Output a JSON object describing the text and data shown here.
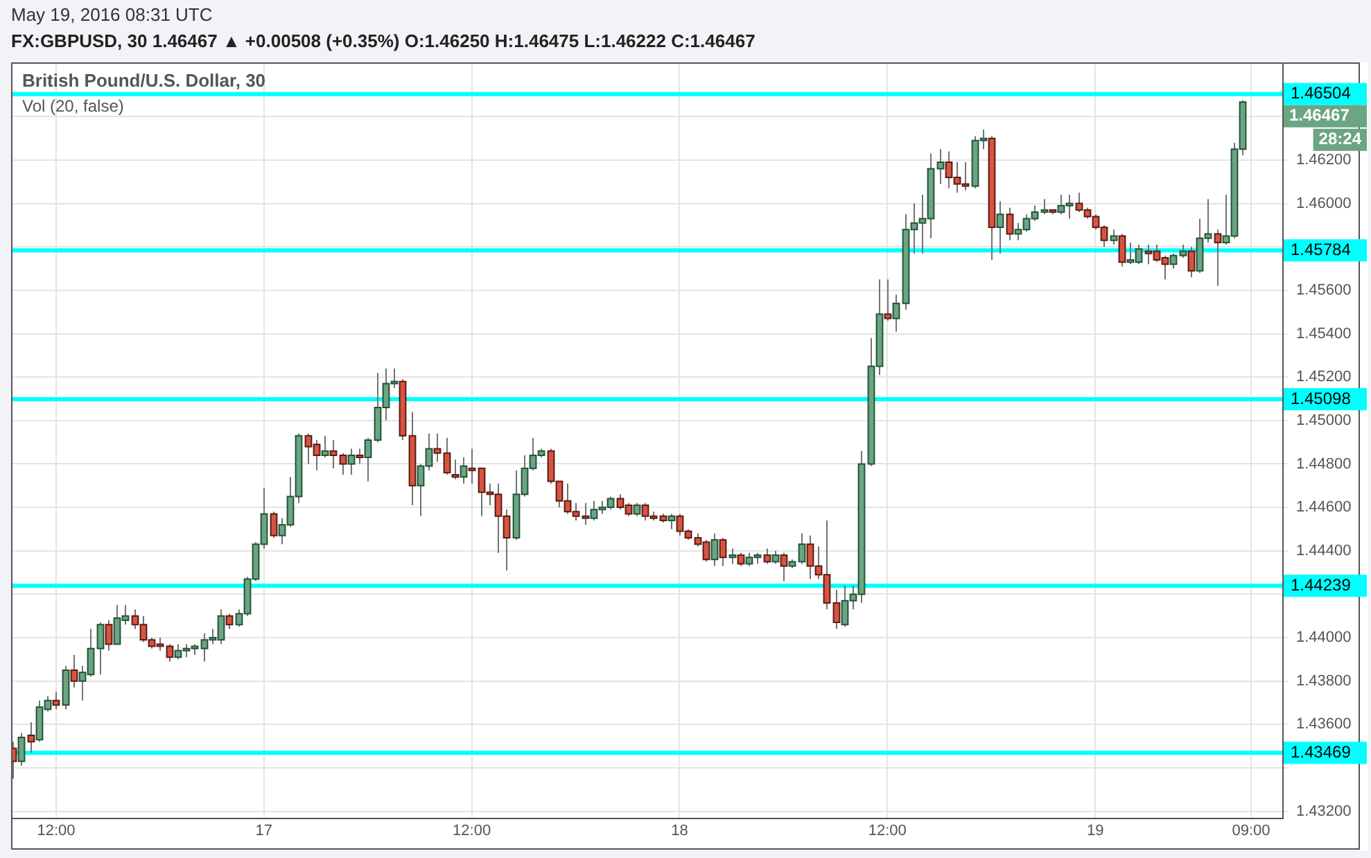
{
  "chart_data": {
    "type": "candlestick",
    "title": "FX:GBPUSD, 30 1.46467 ▲ +0.00508 (+0.35%) O:1.46250 H:1.46475 L:1.46222 C:1.46467",
    "subtitle": "May 19, 2016 08:31 UTC",
    "annotations": [
      "British Pound/U.S. Dollar, 30",
      "Vol (20, false)",
      "1.46467",
      "28:24"
    ],
    "x": [
      "2016-05-16T09:30",
      "2016-05-16T10:00",
      "2016-05-16T10:30",
      "2016-05-16T11:00",
      "2016-05-16T11:30",
      "2016-05-16T12:00",
      "2016-05-16T12:30",
      "2016-05-16T13:00",
      "2016-05-16T13:30",
      "2016-05-16T14:00",
      "2016-05-16T14:30",
      "2016-05-16T15:00",
      "2016-05-16T15:30",
      "2016-05-16T16:00",
      "2016-05-16T16:30",
      "2016-05-16T17:00",
      "2016-05-16T17:30",
      "2016-05-16T18:00",
      "2016-05-16T18:30",
      "2016-05-16T19:00",
      "2016-05-16T19:30",
      "2016-05-16T20:00",
      "2016-05-16T20:30",
      "2016-05-16T21:00",
      "2016-05-16T21:30",
      "2016-05-16T22:00",
      "2016-05-16T22:30",
      "2016-05-16T23:00",
      "2016-05-16T23:30",
      "2016-05-17T00:00",
      "2016-05-17T00:30",
      "2016-05-17T01:00",
      "2016-05-17T01:30",
      "2016-05-17T02:00",
      "2016-05-17T02:30",
      "2016-05-17T03:00",
      "2016-05-17T03:30",
      "2016-05-17T04:00",
      "2016-05-17T04:30",
      "2016-05-17T05:00",
      "2016-05-17T05:30",
      "2016-05-17T06:00",
      "2016-05-17T06:30",
      "2016-05-17T07:00",
      "2016-05-17T07:30",
      "2016-05-17T08:00",
      "2016-05-17T08:30",
      "2016-05-17T09:00",
      "2016-05-17T09:30",
      "2016-05-17T10:00",
      "2016-05-17T10:30",
      "2016-05-17T11:00",
      "2016-05-17T11:30",
      "2016-05-17T12:00",
      "2016-05-17T12:30",
      "2016-05-17T13:00",
      "2016-05-17T13:30",
      "2016-05-17T14:00",
      "2016-05-17T14:30",
      "2016-05-17T15:00",
      "2016-05-17T15:30",
      "2016-05-17T16:00",
      "2016-05-17T16:30",
      "2016-05-17T17:00",
      "2016-05-17T17:30",
      "2016-05-17T18:00",
      "2016-05-17T18:30",
      "2016-05-17T19:00",
      "2016-05-17T19:30",
      "2016-05-17T20:00",
      "2016-05-17T20:30",
      "2016-05-17T21:00",
      "2016-05-17T21:30",
      "2016-05-17T22:00",
      "2016-05-17T22:30",
      "2016-05-17T23:00",
      "2016-05-17T23:30",
      "2016-05-18T00:00",
      "2016-05-18T00:30",
      "2016-05-18T01:00",
      "2016-05-18T01:30",
      "2016-05-18T02:00",
      "2016-05-18T02:30",
      "2016-05-18T03:00",
      "2016-05-18T03:30",
      "2016-05-18T04:00",
      "2016-05-18T04:30",
      "2016-05-18T05:00",
      "2016-05-18T05:30",
      "2016-05-18T06:00",
      "2016-05-18T06:30",
      "2016-05-18T07:00",
      "2016-05-18T07:30",
      "2016-05-18T08:00",
      "2016-05-18T08:30",
      "2016-05-18T09:00",
      "2016-05-18T09:30",
      "2016-05-18T10:00",
      "2016-05-18T10:30",
      "2016-05-18T11:00",
      "2016-05-18T11:30",
      "2016-05-18T12:00",
      "2016-05-18T12:30",
      "2016-05-18T13:00",
      "2016-05-18T13:30",
      "2016-05-18T14:00",
      "2016-05-18T14:30",
      "2016-05-18T15:00",
      "2016-05-18T15:30",
      "2016-05-18T16:00",
      "2016-05-18T16:30",
      "2016-05-18T17:00",
      "2016-05-18T17:30",
      "2016-05-18T18:00",
      "2016-05-18T18:30",
      "2016-05-18T19:00",
      "2016-05-18T19:30",
      "2016-05-18T20:00",
      "2016-05-18T20:30",
      "2016-05-18T21:00",
      "2016-05-18T21:30",
      "2016-05-18T22:00",
      "2016-05-18T22:30",
      "2016-05-18T23:00",
      "2016-05-18T23:30",
      "2016-05-19T00:00",
      "2016-05-19T00:30",
      "2016-05-19T01:00",
      "2016-05-19T01:30",
      "2016-05-19T02:00",
      "2016-05-19T02:30",
      "2016-05-19T03:00",
      "2016-05-19T03:30",
      "2016-05-19T04:00",
      "2016-05-19T04:30",
      "2016-05-19T05:00",
      "2016-05-19T05:30",
      "2016-05-19T06:00",
      "2016-05-19T06:30",
      "2016-05-19T07:00",
      "2016-05-19T07:30",
      "2016-05-19T08:00",
      "2016-05-19T08:30"
    ],
    "ohlc": [
      [
        1.4349,
        1.4352,
        1.4335,
        1.4343
      ],
      [
        1.4343,
        1.4356,
        1.4341,
        1.4354
      ],
      [
        1.4355,
        1.4361,
        1.4347,
        1.4352
      ],
      [
        1.4353,
        1.4371,
        1.4352,
        1.4368
      ],
      [
        1.4367,
        1.4373,
        1.4366,
        1.4371
      ],
      [
        1.4371,
        1.4375,
        1.4367,
        1.4369
      ],
      [
        1.4369,
        1.4387,
        1.4367,
        1.4385
      ],
      [
        1.4385,
        1.4392,
        1.4377,
        1.438
      ],
      [
        1.438,
        1.4387,
        1.4371,
        1.4384
      ],
      [
        1.4383,
        1.4404,
        1.4382,
        1.4395
      ],
      [
        1.4395,
        1.4407,
        1.4383,
        1.4406
      ],
      [
        1.4406,
        1.4408,
        1.4394,
        1.4397
      ],
      [
        1.4397,
        1.4415,
        1.4397,
        1.4409
      ],
      [
        1.4408,
        1.4415,
        1.4406,
        1.441
      ],
      [
        1.441,
        1.4413,
        1.4404,
        1.4406
      ],
      [
        1.4406,
        1.441,
        1.4398,
        1.4399
      ],
      [
        1.4399,
        1.44,
        1.4395,
        1.4396
      ],
      [
        1.4397,
        1.44,
        1.4394,
        1.4396
      ],
      [
        1.4396,
        1.4397,
        1.4389,
        1.4391
      ],
      [
        1.4391,
        1.4397,
        1.439,
        1.4394
      ],
      [
        1.4394,
        1.4397,
        1.4391,
        1.4395
      ],
      [
        1.4395,
        1.4397,
        1.4392,
        1.4396
      ],
      [
        1.4395,
        1.4402,
        1.4389,
        1.4399
      ],
      [
        1.4399,
        1.4404,
        1.4397,
        1.44
      ],
      [
        1.4399,
        1.4413,
        1.4397,
        1.441
      ],
      [
        1.441,
        1.4411,
        1.4404,
        1.4406
      ],
      [
        1.4406,
        1.4413,
        1.4405,
        1.4411
      ],
      [
        1.4411,
        1.4428,
        1.441,
        1.4427
      ],
      [
        1.4427,
        1.4444,
        1.4426,
        1.4443
      ],
      [
        1.4443,
        1.4469,
        1.4441,
        1.4457
      ],
      [
        1.4457,
        1.4458,
        1.4446,
        1.4447
      ],
      [
        1.4447,
        1.4455,
        1.4443,
        1.4452
      ],
      [
        1.4452,
        1.4474,
        1.4451,
        1.4465
      ],
      [
        1.4465,
        1.4494,
        1.4462,
        1.4493
      ],
      [
        1.4493,
        1.4494,
        1.448,
        1.4488
      ],
      [
        1.4489,
        1.4491,
        1.4477,
        1.4484
      ],
      [
        1.4484,
        1.4493,
        1.4483,
        1.4486
      ],
      [
        1.4486,
        1.4491,
        1.4478,
        1.4484
      ],
      [
        1.4484,
        1.4485,
        1.4475,
        1.448
      ],
      [
        1.448,
        1.4487,
        1.4475,
        1.4484
      ],
      [
        1.4484,
        1.4487,
        1.448,
        1.4483
      ],
      [
        1.4483,
        1.4492,
        1.4472,
        1.4491
      ],
      [
        1.4491,
        1.4522,
        1.449,
        1.4506
      ],
      [
        1.4506,
        1.4524,
        1.45,
        1.4517
      ],
      [
        1.4517,
        1.4524,
        1.4515,
        1.4518
      ],
      [
        1.4518,
        1.4519,
        1.4491,
        1.4493
      ],
      [
        1.4493,
        1.4504,
        1.4461,
        1.447
      ],
      [
        1.447,
        1.448,
        1.4456,
        1.4479
      ],
      [
        1.4479,
        1.4494,
        1.4477,
        1.4487
      ],
      [
        1.4487,
        1.4494,
        1.4481,
        1.4485
      ],
      [
        1.4485,
        1.4492,
        1.4475,
        1.4476
      ],
      [
        1.4475,
        1.4482,
        1.4473,
        1.4474
      ],
      [
        1.4474,
        1.4483,
        1.4471,
        1.4479
      ],
      [
        1.4478,
        1.4487,
        1.4471,
        1.4477
      ],
      [
        1.4478,
        1.4478,
        1.4456,
        1.4467
      ],
      [
        1.4467,
        1.4471,
        1.4461,
        1.4466
      ],
      [
        1.4466,
        1.4471,
        1.4439,
        1.4456
      ],
      [
        1.4456,
        1.4459,
        1.4431,
        1.4446
      ],
      [
        1.4446,
        1.4477,
        1.4445,
        1.4466
      ],
      [
        1.4466,
        1.4484,
        1.4465,
        1.4478
      ],
      [
        1.4478,
        1.4492,
        1.4477,
        1.4484
      ],
      [
        1.4484,
        1.4487,
        1.4483,
        1.4486
      ],
      [
        1.4486,
        1.4487,
        1.4471,
        1.4472
      ],
      [
        1.4472,
        1.4472,
        1.446,
        1.4463
      ],
      [
        1.4463,
        1.4471,
        1.4457,
        1.4458
      ],
      [
        1.4458,
        1.4462,
        1.4454,
        1.4456
      ],
      [
        1.4456,
        1.4462,
        1.4452,
        1.4455
      ],
      [
        1.4455,
        1.4463,
        1.4454,
        1.4459
      ],
      [
        1.4459,
        1.4463,
        1.4457,
        1.446
      ],
      [
        1.446,
        1.4465,
        1.4459,
        1.4464
      ],
      [
        1.4464,
        1.4466,
        1.4459,
        1.446
      ],
      [
        1.4461,
        1.4462,
        1.4456,
        1.4457
      ],
      [
        1.4457,
        1.4462,
        1.4456,
        1.4461
      ],
      [
        1.4461,
        1.4462,
        1.4454,
        1.4456
      ],
      [
        1.4456,
        1.4458,
        1.4454,
        1.4455
      ],
      [
        1.4456,
        1.4457,
        1.4453,
        1.4454
      ],
      [
        1.4454,
        1.4457,
        1.445,
        1.4456
      ],
      [
        1.4456,
        1.4457,
        1.4447,
        1.4449
      ],
      [
        1.4449,
        1.445,
        1.4445,
        1.4446
      ],
      [
        1.4446,
        1.4448,
        1.4442,
        1.4443
      ],
      [
        1.4444,
        1.4445,
        1.4435,
        1.4436
      ],
      [
        1.4436,
        1.4448,
        1.4433,
        1.4445
      ],
      [
        1.4445,
        1.4446,
        1.4433,
        1.4437
      ],
      [
        1.4437,
        1.4441,
        1.4434,
        1.4438
      ],
      [
        1.4438,
        1.4439,
        1.4433,
        1.4434
      ],
      [
        1.4434,
        1.4439,
        1.4433,
        1.4437
      ],
      [
        1.4437,
        1.4439,
        1.4434,
        1.4438
      ],
      [
        1.4438,
        1.4441,
        1.4434,
        1.4435
      ],
      [
        1.4435,
        1.444,
        1.4434,
        1.4438
      ],
      [
        1.4438,
        1.4439,
        1.4426,
        1.4433
      ],
      [
        1.4433,
        1.4436,
        1.4432,
        1.4435
      ],
      [
        1.4435,
        1.4448,
        1.4434,
        1.4443
      ],
      [
        1.4443,
        1.4447,
        1.4427,
        1.4433
      ],
      [
        1.4433,
        1.4442,
        1.4427,
        1.4429
      ],
      [
        1.4429,
        1.4454,
        1.4413,
        1.4416
      ],
      [
        1.4416,
        1.4422,
        1.4404,
        1.4407
      ],
      [
        1.4406,
        1.4424,
        1.4405,
        1.4417
      ],
      [
        1.4417,
        1.4424,
        1.4413,
        1.442
      ],
      [
        1.442,
        1.4486,
        1.4416,
        1.448
      ],
      [
        1.448,
        1.4538,
        1.4479,
        1.4525
      ],
      [
        1.4525,
        1.4565,
        1.4521,
        1.4549
      ],
      [
        1.4549,
        1.4565,
        1.4546,
        1.4547
      ],
      [
        1.4547,
        1.4558,
        1.4541,
        1.4554
      ],
      [
        1.4554,
        1.4595,
        1.4551,
        1.4588
      ],
      [
        1.4588,
        1.46,
        1.4577,
        1.4591
      ],
      [
        1.4591,
        1.4604,
        1.4577,
        1.4593
      ],
      [
        1.4593,
        1.4623,
        1.4584,
        1.4616
      ],
      [
        1.4616,
        1.4625,
        1.4609,
        1.4619
      ],
      [
        1.4619,
        1.4624,
        1.4607,
        1.4612
      ],
      [
        1.4612,
        1.4619,
        1.4605,
        1.4609
      ],
      [
        1.4609,
        1.4619,
        1.4606,
        1.4608
      ],
      [
        1.4608,
        1.4631,
        1.4607,
        1.4629
      ],
      [
        1.4629,
        1.4634,
        1.4625,
        1.463
      ],
      [
        1.463,
        1.4631,
        1.4574,
        1.4589
      ],
      [
        1.4589,
        1.4601,
        1.4577,
        1.4595
      ],
      [
        1.4595,
        1.4598,
        1.4583,
        1.4586
      ],
      [
        1.4586,
        1.4591,
        1.4583,
        1.4588
      ],
      [
        1.4588,
        1.4595,
        1.4587,
        1.4593
      ],
      [
        1.4593,
        1.4599,
        1.4592,
        1.4596
      ],
      [
        1.4596,
        1.4602,
        1.4595,
        1.4597
      ],
      [
        1.4597,
        1.4597,
        1.4595,
        1.4596
      ],
      [
        1.4596,
        1.4604,
        1.4595,
        1.4599
      ],
      [
        1.4599,
        1.4604,
        1.4593,
        1.46
      ],
      [
        1.46,
        1.4605,
        1.4596,
        1.4597
      ],
      [
        1.4597,
        1.4598,
        1.4593,
        1.4594
      ],
      [
        1.4594,
        1.4595,
        1.4588,
        1.4589
      ],
      [
        1.4589,
        1.459,
        1.458,
        1.4583
      ],
      [
        1.4583,
        1.4588,
        1.4581,
        1.4585
      ],
      [
        1.4585,
        1.4586,
        1.4571,
        1.4573
      ],
      [
        1.4573,
        1.4582,
        1.4572,
        1.4574
      ],
      [
        1.4573,
        1.4581,
        1.4572,
        1.4579
      ],
      [
        1.4578,
        1.4581,
        1.4572,
        1.4577
      ],
      [
        1.4578,
        1.4581,
        1.4573,
        1.4574
      ],
      [
        1.4575,
        1.4576,
        1.4565,
        1.4572
      ],
      [
        1.4572,
        1.4577,
        1.457,
        1.4576
      ],
      [
        1.4576,
        1.4581,
        1.4575,
        1.4578
      ],
      [
        1.4578,
        1.458,
        1.4566,
        1.4569
      ],
      [
        1.4569,
        1.4593,
        1.4568,
        1.4584
      ],
      [
        1.4584,
        1.4602,
        1.4582,
        1.4586
      ],
      [
        1.4586,
        1.4588,
        1.4562,
        1.4582
      ],
      [
        1.4582,
        1.4604,
        1.4581,
        1.4585
      ],
      [
        1.4585,
        1.4628,
        1.4584,
        1.4625
      ],
      [
        1.4625,
        1.46475,
        1.46222,
        1.46467
      ]
    ],
    "xlim": [
      "2016-05-16T09:24",
      "2016-05-19T10:48"
    ],
    "xticks": [
      {
        "value": "2016-05-16T12:00",
        "label": "12:00"
      },
      {
        "value": "2016-05-17",
        "label": "17"
      },
      {
        "value": "2016-05-17T12:00",
        "label": "12:00"
      },
      {
        "value": "2016-05-18",
        "label": "18"
      },
      {
        "value": "2016-05-18T12:00",
        "label": "12:00"
      },
      {
        "value": "2016-05-19",
        "label": "19"
      },
      {
        "value": "2016-05-19T09:00",
        "label": "09:00"
      }
    ],
    "ylim": [
      1.4317,
      1.4665
    ],
    "yticks": [
      {
        "value": 1.432,
        "label": "1.43200"
      },
      {
        "value": 1.434,
        "label": null
      },
      {
        "value": 1.436,
        "label": "1.43600"
      },
      {
        "value": 1.438,
        "label": "1.43800"
      },
      {
        "value": 1.44,
        "label": "1.44000"
      },
      {
        "value": 1.442,
        "label": null
      },
      {
        "value": 1.444,
        "label": "1.44400"
      },
      {
        "value": 1.446,
        "label": "1.44600"
      },
      {
        "value": 1.448,
        "label": "1.44800"
      },
      {
        "value": 1.45,
        "label": "1.45000"
      },
      {
        "value": 1.452,
        "label": "1.45200"
      },
      {
        "value": 1.454,
        "label": "1.45400"
      },
      {
        "value": 1.456,
        "label": "1.45600"
      },
      {
        "value": 1.458,
        "label": null
      },
      {
        "value": 1.46,
        "label": "1.46000"
      },
      {
        "value": 1.462,
        "label": "1.46200"
      },
      {
        "value": 1.464,
        "label": null
      }
    ],
    "ref_lines": [
      {
        "axis": "y",
        "value": 1.46504,
        "label": "1.46504",
        "color": "#00ffff"
      },
      {
        "axis": "y",
        "value": 1.45784,
        "label": "1.45784",
        "color": "#00ffff"
      },
      {
        "axis": "y",
        "value": 1.45098,
        "label": "1.45098",
        "color": "#00ffff"
      },
      {
        "axis": "y",
        "value": 1.44239,
        "label": "1.44239",
        "color": "#00ffff"
      },
      {
        "axis": "y",
        "value": 1.43469,
        "label": "1.43469",
        "color": "#00ffff"
      }
    ],
    "grid": true
  }
}
